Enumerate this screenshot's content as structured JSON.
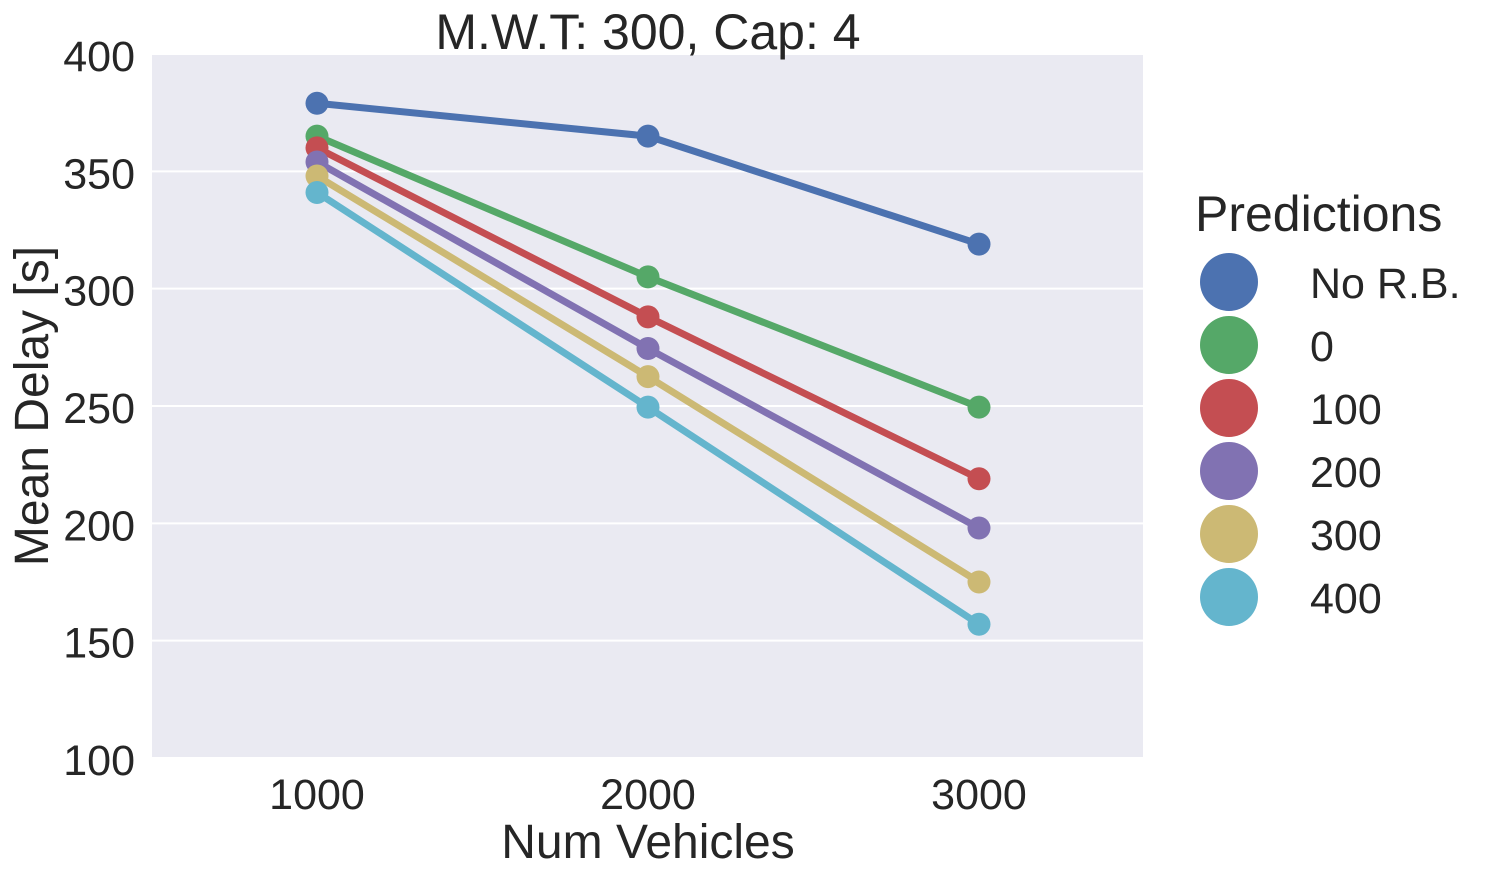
{
  "chart_data": {
    "type": "line",
    "title": "M.W.T: 300, Cap: 4",
    "xlabel": "Num Vehicles",
    "ylabel": "Mean Delay [s]",
    "categories": [
      "1000",
      "2000",
      "3000"
    ],
    "ylim": [
      100,
      400
    ],
    "yticks": [
      100,
      150,
      200,
      250,
      300,
      350,
      400
    ],
    "grid": "horizontal",
    "legend": {
      "title": "Predictions",
      "placement": "right-outside"
    },
    "series": [
      {
        "name": "No R.B.",
        "color": "#4c72b0",
        "values": [
          379,
          365,
          319
        ]
      },
      {
        "name": "0",
        "color": "#55a868",
        "values": [
          365,
          305,
          249.5
        ]
      },
      {
        "name": "100",
        "color": "#c44e52",
        "values": [
          360,
          288,
          219
        ]
      },
      {
        "name": "200",
        "color": "#8172b2",
        "values": [
          354,
          274.5,
          198
        ]
      },
      {
        "name": "300",
        "color": "#ccb974",
        "values": [
          348,
          262.5,
          175
        ]
      },
      {
        "name": "400",
        "color": "#64b5cd",
        "values": [
          341,
          249.5,
          157
        ]
      }
    ]
  }
}
